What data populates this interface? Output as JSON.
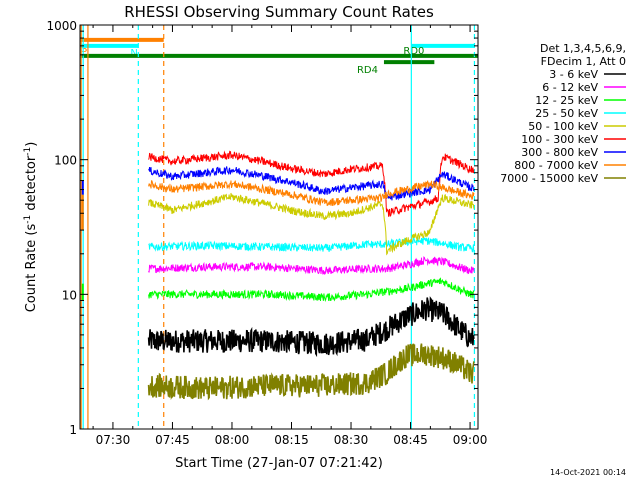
{
  "chart_data": {
    "type": "line",
    "title": "RHESSI Observing Summary Count Rates",
    "xlabel": "Start Time (27-Jan-07 07:21:42)",
    "ylabel_main": "Count Rate (s",
    "ylabel_sup": "-1",
    "ylabel_mid": " detector",
    "ylabel_sup2": "-1",
    "ylabel_end": ")",
    "y_scale": "log",
    "ylim": [
      1,
      1000
    ],
    "xlim_minutes": [
      441.7,
      542.0
    ],
    "x_ticks": [
      {
        "m": 450,
        "label": "07:30"
      },
      {
        "m": 465,
        "label": "07:45"
      },
      {
        "m": 480,
        "label": "08:00"
      },
      {
        "m": 495,
        "label": "08:15"
      },
      {
        "m": 510,
        "label": "08:30"
      },
      {
        "m": 525,
        "label": "08:45"
      },
      {
        "m": 540,
        "label": "09:00"
      }
    ],
    "y_ticks": [
      {
        "v": 1,
        "label": "1"
      },
      {
        "v": 10,
        "label": "10"
      },
      {
        "v": 100,
        "label": "100"
      },
      {
        "v": 1000,
        "label": "1000"
      }
    ],
    "legend_header": [
      "Det 1,3,4,5,6,9,",
      "FDecim 1, Att 0"
    ],
    "series": [
      {
        "name": "3 - 6 keV",
        "color": "#000000",
        "times": [
          459,
          474,
          489,
          504,
          514,
          519,
          524,
          529,
          533,
          537,
          540
        ],
        "values": [
          4.5,
          4.5,
          4.5,
          4.3,
          4.6,
          5.5,
          6.8,
          7.8,
          7.2,
          5.6,
          4.7
        ]
      },
      {
        "name": "6 - 12 keV",
        "color": "#ff00ff",
        "times": [
          459,
          474,
          489,
          504,
          514,
          519,
          524,
          529,
          533,
          537,
          540
        ],
        "values": [
          15.5,
          16,
          16,
          15,
          15.5,
          15.5,
          16.5,
          18,
          17.5,
          16,
          15
        ]
      },
      {
        "name": "12 - 25 keV",
        "color": "#00ff00",
        "times": [
          459,
          474,
          489,
          504,
          514,
          519,
          524,
          529,
          533,
          537,
          540
        ],
        "values": [
          10,
          10,
          10,
          9.5,
          10,
          10.5,
          11,
          12,
          12.5,
          11,
          10
        ]
      },
      {
        "name": "25 - 50 keV",
        "color": "#00ffff",
        "times": [
          459,
          474,
          489,
          504,
          514,
          519,
          524,
          529,
          533,
          537,
          540
        ],
        "values": [
          22.5,
          23,
          22.5,
          22,
          23.5,
          23.5,
          24.5,
          25,
          24,
          22.5,
          22
        ]
      },
      {
        "name": "50 - 100 keV",
        "color": "#cccc00",
        "times": [
          459,
          465,
          480,
          495,
          503,
          510,
          518,
          519,
          524,
          530,
          533,
          540
        ],
        "values": [
          48,
          42,
          53,
          42,
          38,
          40,
          47,
          21,
          25,
          29,
          52,
          46
        ]
      },
      {
        "name": "100 - 300 keV",
        "color": "#ff0000",
        "times": [
          459,
          465,
          480,
          495,
          503,
          510,
          518,
          519,
          524,
          530,
          532,
          533,
          540
        ],
        "values": [
          105,
          97,
          108,
          86,
          78,
          85,
          90,
          40,
          44,
          49,
          52,
          106,
          85
        ]
      },
      {
        "name": "300 - 800 keV",
        "color": "#0000ff",
        "times": [
          459,
          465,
          480,
          495,
          503,
          510,
          518,
          519,
          524,
          530,
          533,
          540
        ],
        "values": [
          83,
          75,
          84,
          68,
          58,
          62,
          66,
          52,
          56,
          60,
          78,
          62
        ]
      },
      {
        "name": "800 - 7000 keV",
        "color": "#ff8000",
        "times": [
          459,
          465,
          480,
          495,
          503,
          510,
          518,
          519,
          524,
          530,
          533,
          540
        ],
        "values": [
          66,
          60,
          66,
          55,
          48,
          50,
          52,
          56,
          60,
          66,
          62,
          54
        ]
      },
      {
        "name": "7000 - 15000 keV",
        "color": "#808000",
        "times": [
          459,
          474,
          489,
          504,
          514,
          519,
          524,
          529,
          533,
          537,
          540
        ],
        "values": [
          2.1,
          2.0,
          2.1,
          2.1,
          2.2,
          2.6,
          3.5,
          3.6,
          3.4,
          3.0,
          2.6
        ]
      }
    ],
    "vertical_lines": [
      {
        "m": 442.0,
        "color": "#ff8000",
        "style": "solid"
      },
      {
        "m": 443.7,
        "color": "#ff8000",
        "style": "solid"
      },
      {
        "m": 462.8,
        "color": "#ff8000",
        "style": "dashed"
      },
      {
        "m": 442.5,
        "color": "#00ffff",
        "style": "solid"
      },
      {
        "m": 456.4,
        "color": "#00ffff",
        "style": "dashed"
      },
      {
        "m": 525.2,
        "color": "#00ffff",
        "style": "solid"
      },
      {
        "m": 541.1,
        "color": "#00ffff",
        "style": "dashed"
      }
    ],
    "state_bars": [
      {
        "label": "S",
        "color": "#ff8000",
        "start": 441.7,
        "end": 462.8,
        "v": 775
      },
      {
        "label": "N",
        "color": "#00ffff",
        "start": 441.7,
        "end": 456.4,
        "v": 700
      },
      {
        "label": "",
        "color": "#00ffff",
        "start": 525.2,
        "end": 541.1,
        "v": 700
      },
      {
        "label": "RD0",
        "color": "#008000",
        "start": 441.7,
        "end": 542.0,
        "v": 590
      },
      {
        "label": "RD4",
        "color": "#008000",
        "start": 518.3,
        "end": 531.0,
        "v": 530
      }
    ],
    "footer_date": "14-Oct-2021 00:14"
  }
}
